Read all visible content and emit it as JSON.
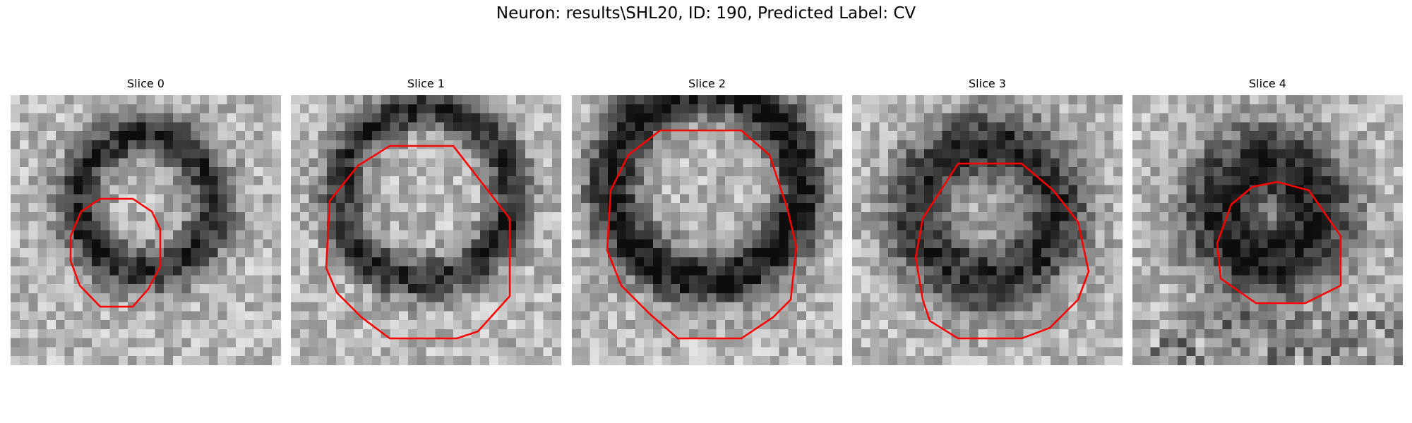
{
  "figure": {
    "title": "Neuron: results\\SHL20, ID: 190, Predicted Label: CV",
    "slices": [
      {
        "title": "Slice 0"
      },
      {
        "title": "Slice 1"
      },
      {
        "title": "Slice 2"
      },
      {
        "title": "Slice 3"
      },
      {
        "title": "Slice 4"
      }
    ],
    "contour_color": "#ff0000",
    "colormap": "grayscale"
  }
}
